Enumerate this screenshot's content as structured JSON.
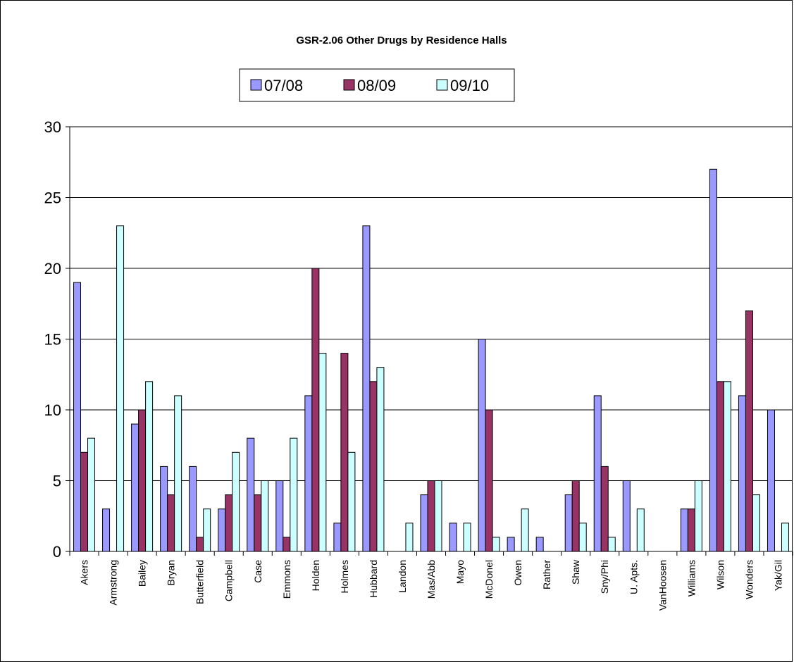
{
  "chart_data": {
    "type": "bar",
    "title": "GSR-2.06 Other Drugs by Residence Halls",
    "xlabel": "",
    "ylabel": "",
    "ylim": [
      0,
      30
    ],
    "yticks": [
      0,
      5,
      10,
      15,
      20,
      25,
      30
    ],
    "grid": true,
    "legend_position": "top-center",
    "categories": [
      "Akers",
      "Armstrong",
      "Bailey",
      "Bryan",
      "Butterfield",
      "Campbell",
      "Case",
      "Emmons",
      "Holden",
      "Holmes",
      "Hubbard",
      "Landon",
      "Mas/Abb",
      "Mayo",
      "McDonel",
      "Owen",
      "Rather",
      "Shaw",
      "Sny/Phi",
      "U. Apts.",
      "VanHoosen",
      "Williams",
      "Wilson",
      "Wonders",
      "Yak/Gil"
    ],
    "series": [
      {
        "name": "07/08",
        "color": "#9999FF",
        "values": [
          19,
          3,
          9,
          6,
          6,
          3,
          8,
          5,
          11,
          2,
          23,
          0,
          4,
          2,
          15,
          1,
          1,
          4,
          11,
          5,
          0,
          3,
          27,
          11,
          10
        ]
      },
      {
        "name": "08/09",
        "color": "#993366",
        "values": [
          7,
          0,
          10,
          4,
          1,
          4,
          4,
          1,
          20,
          14,
          12,
          0,
          5,
          0,
          10,
          0,
          0,
          5,
          6,
          0,
          0,
          3,
          12,
          17,
          0
        ]
      },
      {
        "name": "09/10",
        "color": "#CCFFFF",
        "values": [
          8,
          23,
          12,
          11,
          3,
          7,
          5,
          8,
          14,
          7,
          13,
          2,
          5,
          2,
          1,
          3,
          0,
          2,
          1,
          3,
          0,
          5,
          12,
          4,
          2
        ]
      }
    ]
  }
}
